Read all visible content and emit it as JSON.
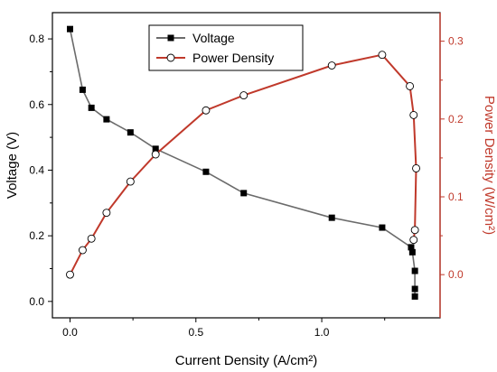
{
  "chart_data": {
    "type": "line",
    "xlabel": "Current Density (A/cm²)",
    "ylabel_left": "Voltage (V)",
    "ylabel_right": "Power Density (W/cm²)",
    "xlim": [
      -0.07,
      1.47
    ],
    "ylim_left": [
      -0.05,
      0.88
    ],
    "ylim_right": [
      -0.0555,
      0.3367
    ],
    "x_ticks": [
      0.0,
      0.5,
      1.0
    ],
    "x_tick_labels": [
      "0.0",
      "0.5",
      "1.0"
    ],
    "y_left_ticks": [
      0.0,
      0.2,
      0.4,
      0.6,
      0.8
    ],
    "y_left_tick_labels": [
      "0.0",
      "0.2",
      "0.4",
      "0.6",
      "0.8"
    ],
    "y_right_ticks": [
      0.0,
      0.1,
      0.2,
      0.3
    ],
    "y_right_tick_labels": [
      "0.0",
      "0.1",
      "0.2",
      "0.3"
    ],
    "legend_position": "top-center",
    "series": [
      {
        "name": "Voltage",
        "axis": "left",
        "color": "#6b6b6b",
        "marker": "filled-square",
        "x": [
          0.0,
          0.05,
          0.085,
          0.145,
          0.24,
          0.34,
          0.54,
          0.69,
          1.04,
          1.24,
          1.355,
          1.36,
          1.37,
          1.37,
          1.37
        ],
        "y": [
          0.83,
          0.645,
          0.59,
          0.555,
          0.515,
          0.465,
          0.395,
          0.33,
          0.255,
          0.225,
          0.165,
          0.15,
          0.093,
          0.038,
          0.015
        ]
      },
      {
        "name": "Power Density",
        "axis": "right",
        "color": "#c0392b",
        "marker": "open-circle",
        "x": [
          0.0,
          0.05,
          0.085,
          0.145,
          0.24,
          0.34,
          0.54,
          0.69,
          1.04,
          1.24,
          1.35,
          1.365,
          1.375,
          1.37,
          1.365
        ],
        "y": [
          0.0,
          0.0315,
          0.0463,
          0.0795,
          0.1196,
          0.1545,
          0.2111,
          0.2304,
          0.2688,
          0.2825,
          0.2422,
          0.2051,
          0.1366,
          0.0573,
          0.0447
        ]
      }
    ]
  }
}
